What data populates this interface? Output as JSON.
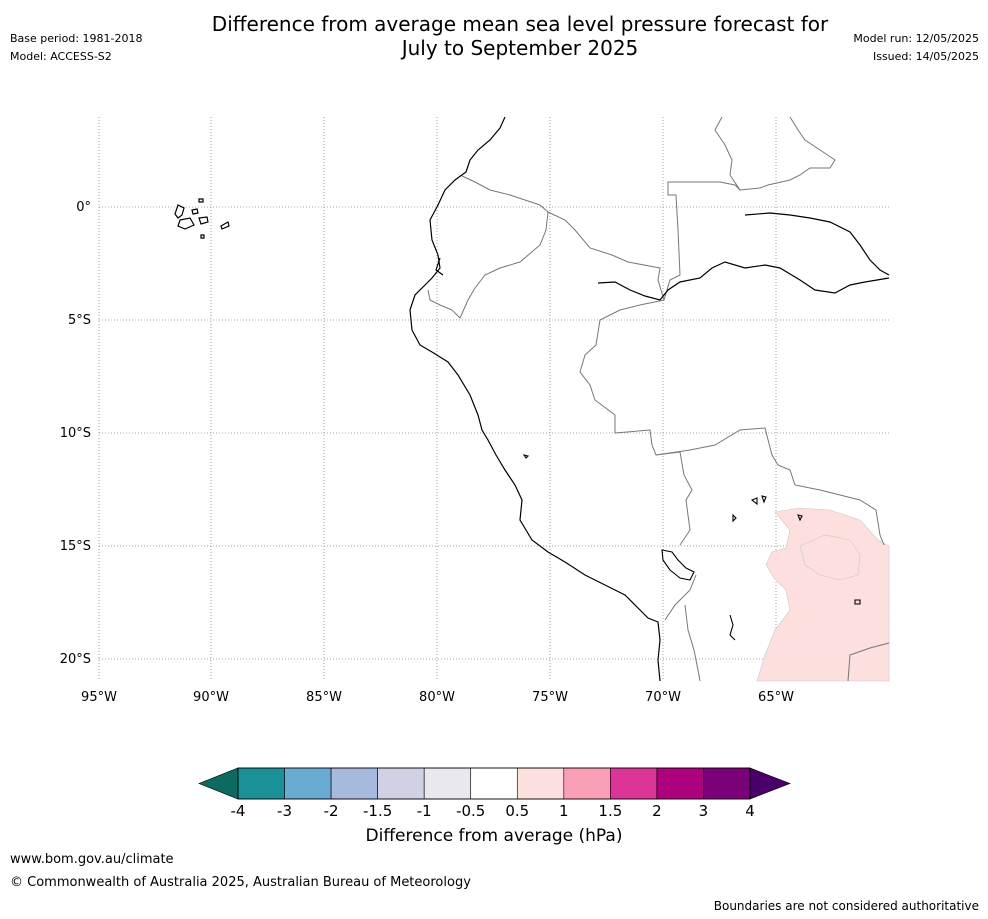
{
  "title_line1": "Difference from average mean sea level pressure forecast for",
  "title_line2": "July to September 2025",
  "base_period": "Base period: 1981-2018",
  "model": "Model: ACCESS-S2",
  "model_run": "Model run: 12/05/2025",
  "issued": "Issued: 14/05/2025",
  "map": {
    "lat_labels": [
      "0°",
      "5°S",
      "10°S",
      "15°S",
      "20°S"
    ],
    "lon_labels": [
      "95°W",
      "90°W",
      "85°W",
      "80°W",
      "75°W",
      "70°W",
      "65°W"
    ],
    "colors": {
      "coast": "#000000",
      "border": "#777777",
      "grid": "#888888",
      "anomaly_0_5_to_1": "#fde0dd"
    }
  },
  "colorbar": {
    "tick_labels": [
      "-4",
      "-3",
      "-2",
      "-1.5",
      "-1",
      "-0.5",
      "0.5",
      "1",
      "1.5",
      "2",
      "3",
      "4"
    ],
    "colors": [
      "#1a9197",
      "#6aabd3",
      "#a7b9dc",
      "#d1d1e6",
      "#e9e8ee",
      "#ffffff",
      "#fde0dd",
      "#fa9fb5",
      "#dd3497",
      "#ae017e",
      "#7a0177"
    ],
    "under_color": "#0a6b5e",
    "over_color": "#49006a",
    "label": "Difference from average (hPa)"
  },
  "footer": {
    "url": "www.bom.gov.au/climate",
    "copyright": "© Commonwealth of Australia 2025, Australian Bureau of Meteorology",
    "note": "Boundaries are not considered authoritative"
  }
}
